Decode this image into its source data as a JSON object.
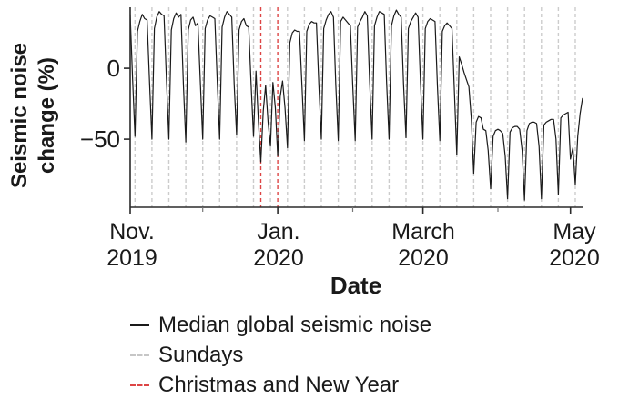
{
  "figure": {
    "ylabel_line1": "Seismic noise",
    "ylabel_line2": "change (%)",
    "xlabel": "Date",
    "y_tick_labels": [
      "0",
      "−50"
    ],
    "x_tick_labels": [
      {
        "month": "Nov.",
        "year": "2019"
      },
      {
        "month": "Jan.",
        "year": "2020"
      },
      {
        "month": "March",
        "year": "2020"
      },
      {
        "month": "May",
        "year": "2020"
      }
    ]
  },
  "legend": {
    "items": [
      {
        "label": "Median global seismic noise",
        "style": "solid",
        "color": "#1a1a1a"
      },
      {
        "label": "Sundays",
        "style": "dashed",
        "color": "#c6c6c6"
      },
      {
        "label": "Christmas and New Year",
        "style": "dashed",
        "color": "#dd4545"
      }
    ]
  },
  "chart_data": {
    "type": "line",
    "title": "",
    "xlabel": "Date",
    "ylabel": "Seismic noise change (%)",
    "x_start_date": "2019-11-01",
    "x_end_date": "2020-05-06",
    "x_unit": "days since 2019-11-01",
    "ylim": [
      -98,
      43
    ],
    "y_ticks": [
      0,
      -50
    ],
    "grid": "vertical-event-lines-only",
    "legend_position": "below",
    "x_axis": {
      "major_tick_days": [
        0,
        61,
        121,
        182
      ],
      "minor_tick_days": [
        30,
        92,
        152
      ]
    },
    "sundays_days": [
      2,
      9,
      16,
      23,
      30,
      37,
      44,
      51,
      58,
      65,
      72,
      79,
      86,
      93,
      100,
      107,
      114,
      121,
      128,
      135,
      142,
      149,
      156,
      163,
      170,
      177,
      184
    ],
    "holidays_days": [
      54,
      61
    ],
    "colors": {
      "line": "#1a1a1a",
      "sunday": "#cccccc",
      "holiday": "#dd4545",
      "axis": "#2b2b2b",
      "minor_tick": "#777777"
    },
    "series": [
      {
        "name": "Median global seismic noise",
        "values": [
          38,
          -8,
          -48,
          26,
          33,
          38,
          35,
          34,
          -10,
          -50,
          28,
          36,
          40,
          38,
          37,
          -9,
          -50,
          27,
          35,
          39,
          36,
          38,
          -12,
          -52,
          27,
          34,
          36,
          30,
          32,
          -10,
          -50,
          28,
          34,
          37,
          36,
          35,
          -10,
          -50,
          29,
          36,
          40,
          38,
          36,
          -12,
          -47,
          27,
          33,
          35,
          30,
          29,
          -12,
          -48,
          -2,
          -38,
          -66,
          -30,
          -12,
          -38,
          -55,
          -10,
          -28,
          -62,
          -20,
          -9,
          -28,
          -56,
          18,
          25,
          27,
          26,
          26,
          -12,
          -51,
          26,
          31,
          33,
          32,
          32,
          -12,
          -50,
          28,
          34,
          38,
          40,
          36,
          -12,
          -51,
          33,
          36,
          34,
          32,
          30,
          -12,
          -51,
          29,
          33,
          36,
          40,
          37,
          -10,
          -50,
          30,
          36,
          40,
          39,
          38,
          -10,
          -50,
          30,
          37,
          41,
          38,
          36,
          -11,
          -49,
          28,
          33,
          36,
          39,
          36,
          -10,
          -50,
          28,
          33,
          35,
          34,
          33,
          -12,
          -51,
          26,
          30,
          32,
          30,
          28,
          -15,
          -61,
          8,
          3,
          -3,
          -8,
          -13,
          -35,
          -74,
          -38,
          -34,
          -35,
          -43,
          -44,
          -58,
          -85,
          -48,
          -44,
          -43,
          -44,
          -46,
          -62,
          -92,
          -45,
          -42,
          -41,
          -41,
          -43,
          -58,
          -93,
          -44,
          -39,
          -38,
          -38,
          -39,
          -55,
          -92,
          -40,
          -38,
          -37,
          -36,
          -36,
          -50,
          -89,
          -35,
          -33,
          -32,
          -31,
          -64,
          -56,
          -82,
          -48,
          -32,
          -21
        ]
      }
    ]
  }
}
